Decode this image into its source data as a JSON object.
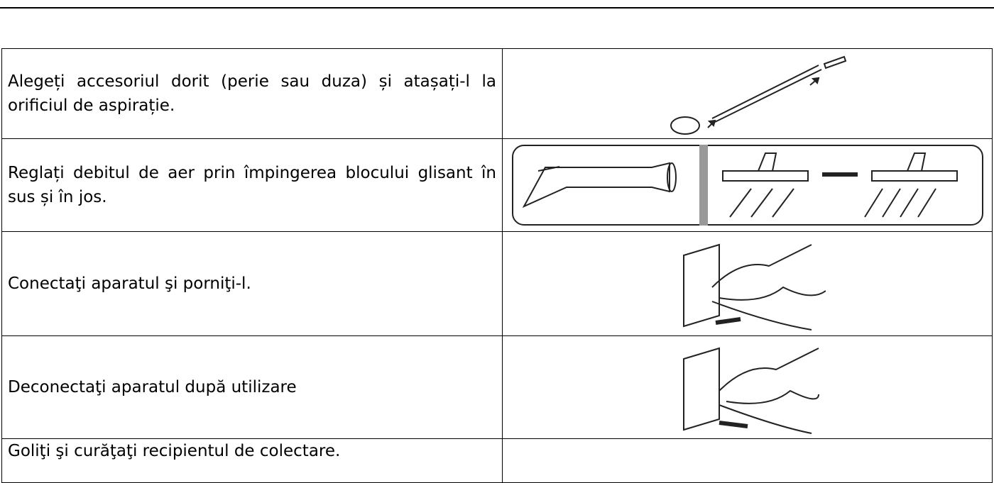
{
  "table": {
    "rows": [
      [
        "Alegeți accesoriul dorit (perie sau duza) și atașați-l la orificiul de aspirație."
      ],
      [
        "Reglați debitul de aer prin împingerea blocului glisant în sus și în jos."
      ],
      [
        "Conectaţi aparatul şi porniţi-l."
      ],
      [
        "Deconectaţi aparatul după utilizare"
      ],
      [
        "Goliţi şi curăţaţi recipientul de colectare."
      ]
    ]
  }
}
